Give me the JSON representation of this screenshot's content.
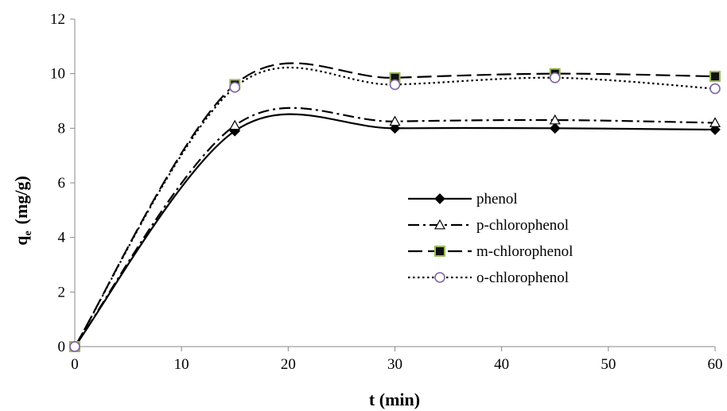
{
  "chart_data": {
    "type": "line",
    "title": "",
    "xlabel": "t (min)",
    "ylabel_main": "q",
    "ylabel_sub": "e",
    "ylabel_unit": "(mg/g)",
    "xlim": [
      0,
      60
    ],
    "ylim": [
      0,
      12
    ],
    "xticks": [
      0,
      10,
      20,
      30,
      40,
      50,
      60
    ],
    "yticks": [
      0,
      2,
      4,
      6,
      8,
      10,
      12
    ],
    "grid": false,
    "legend_position": "center-right",
    "x": [
      0,
      15,
      30,
      45,
      60
    ],
    "series": [
      {
        "name": "phenol",
        "values": [
          0,
          7.9,
          8.0,
          8.0,
          7.95
        ],
        "marker": "diamond",
        "line_style": "solid",
        "marker_color": "#000000",
        "marker_edge": "#000000"
      },
      {
        "name": "p-chlorophenol",
        "values": [
          0,
          8.1,
          8.25,
          8.3,
          8.2
        ],
        "marker": "triangle",
        "line_style": "dashdot",
        "marker_color": "#ffffff",
        "marker_edge": "#000000"
      },
      {
        "name": "m-chlorophenol",
        "values": [
          0,
          9.6,
          9.85,
          10.0,
          9.9
        ],
        "marker": "square",
        "line_style": "longdash",
        "marker_color": "#111111",
        "marker_edge": "#9bbb59"
      },
      {
        "name": "o-chlorophenol",
        "values": [
          0,
          9.5,
          9.6,
          9.85,
          9.45
        ],
        "marker": "circle",
        "line_style": "dotted",
        "marker_color": "#ffffff",
        "marker_edge": "#8064a2"
      }
    ]
  }
}
